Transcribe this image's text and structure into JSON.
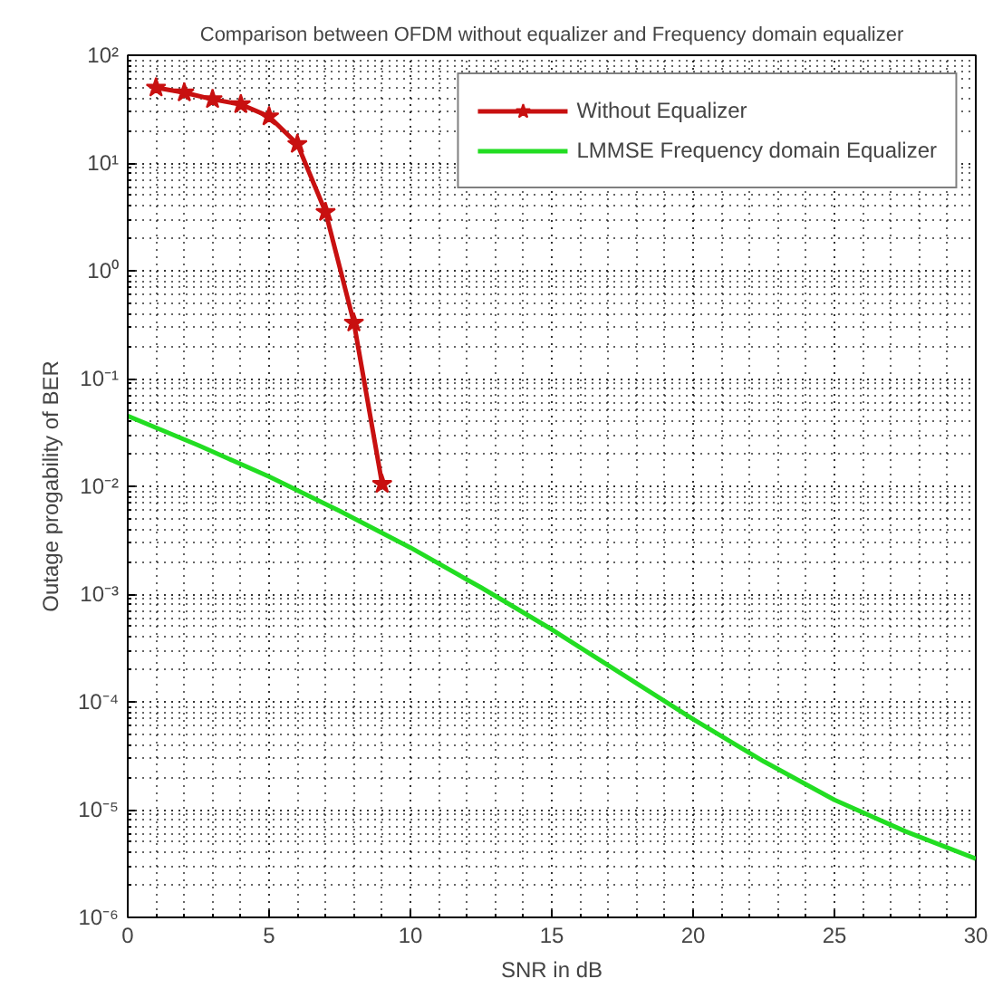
{
  "chart_data": {
    "type": "line",
    "title": "Comparison between OFDM without equalizer and Frequency domain equalizer",
    "xlabel": "SNR in dB",
    "ylabel": "Outage progability of BER",
    "log": "y",
    "grid": true,
    "legend": "top right",
    "xlim": [
      0,
      30
    ],
    "xticks": [
      0,
      5,
      10,
      15,
      20,
      25,
      30
    ],
    "ylim": [
      1e-06,
      100
    ],
    "yticks": [
      {
        "value": 1e-06,
        "label": "10⁻⁶"
      },
      {
        "value": 1e-05,
        "label": "10⁻⁵"
      },
      {
        "value": 0.0001,
        "label": "10⁻⁴"
      },
      {
        "value": 0.001,
        "label": "10⁻³"
      },
      {
        "value": 0.01,
        "label": "10⁻²"
      },
      {
        "value": 0.1,
        "label": "10⁻¹"
      },
      {
        "value": 1,
        "label": "10⁰"
      },
      {
        "value": 10,
        "label": "10¹"
      },
      {
        "value": 100,
        "label": "10²"
      }
    ],
    "series": [
      {
        "name": "Without Equalizer",
        "color": "#c81010",
        "marker": "star",
        "x": [
          1,
          2,
          3,
          4,
          5,
          6,
          7,
          8,
          9
        ],
        "values": [
          50,
          45,
          39,
          35,
          27,
          15,
          3.5,
          0.33,
          0.0105
        ]
      },
      {
        "name": "LMMSE Frequency domain Equalizer",
        "color": "#22dd22",
        "marker": "none",
        "x": [
          0,
          2.5,
          5,
          7.5,
          10,
          12.5,
          15,
          17.5,
          20,
          22.5,
          25,
          27.5,
          30
        ],
        "values": [
          0.045,
          0.024,
          0.0123,
          0.0059,
          0.0027,
          0.00115,
          0.00047,
          0.00018,
          6.9e-05,
          2.8e-05,
          1.23e-05,
          6.3e-06,
          3.5e-06
        ]
      }
    ]
  }
}
